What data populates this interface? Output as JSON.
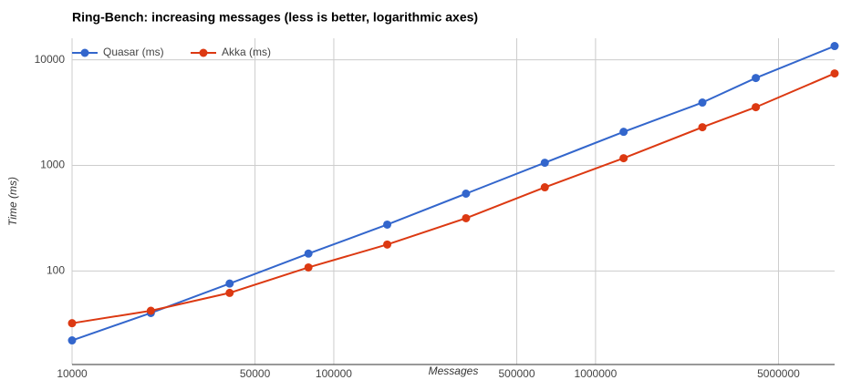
{
  "chart_data": {
    "type": "line",
    "title": "Ring-Bench: increasing messages (less is better, logarithmic axes)",
    "x_label": "Messages",
    "y_label": "Time (ms)",
    "x": [
      10000,
      20000,
      40000,
      80000,
      160000,
      320000,
      640000,
      1280000,
      2560000,
      4096000,
      8192000
    ],
    "series": [
      {
        "name": "Quasar (ms)",
        "color": "#3366cc",
        "values": [
          22,
          40,
          76,
          146,
          275,
          540,
          1060,
          2080,
          3940,
          6730,
          13500
        ]
      },
      {
        "name": "Akka (ms)",
        "color": "#dc3912",
        "values": [
          32,
          42,
          62,
          108,
          178,
          316,
          620,
          1170,
          2300,
          3560,
          7430
        ]
      }
    ],
    "xlim": [
      10000,
      8192000
    ],
    "ylim": [
      13,
      16000
    ],
    "xticks": [
      10000,
      50000,
      100000,
      500000,
      1000000,
      5000000
    ],
    "yticks": [
      100,
      1000,
      10000
    ],
    "xscale": "log",
    "yscale": "log",
    "grid": true,
    "legend": "top-left"
  }
}
